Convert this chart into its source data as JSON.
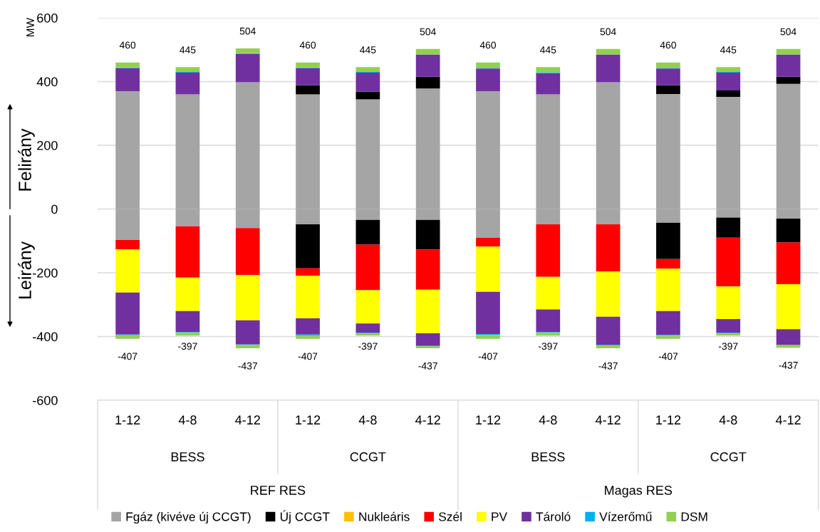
{
  "chart_data": {
    "type": "bar",
    "stacked": true,
    "ylabel": "MW",
    "categories": [
      "1-12",
      "4-8",
      "4-12",
      "1-12",
      "4-8",
      "4-12",
      "1-12",
      "4-8",
      "4-12",
      "1-12",
      "4-8",
      "4-12"
    ],
    "series": [
      {
        "name": "Fgáz (kivéve új CCGT)",
        "color": "#a5a5a5",
        "values": [
          370,
          360,
          398,
          360,
          344,
          378,
          370,
          360,
          398,
          361,
          352,
          393
        ]
      },
      {
        "name": "Új CCGT",
        "color": "#000000",
        "values": [
          0,
          0,
          0,
          28,
          24,
          37,
          0,
          0,
          0,
          27,
          20,
          22
        ]
      },
      {
        "name": "Nukleáris",
        "color": "#ffc000",
        "values": [
          0,
          0,
          0,
          0,
          0,
          0,
          0,
          0,
          0,
          0,
          0,
          0
        ]
      },
      {
        "name": "Szél",
        "color": "#ff0000",
        "values": [
          0,
          0,
          0,
          0,
          0,
          0,
          0,
          0,
          0,
          0,
          0,
          0
        ]
      },
      {
        "name": "PV",
        "color": "#ffff00",
        "values": [
          0,
          0,
          0,
          0,
          0,
          0,
          0,
          0,
          0,
          0,
          0,
          0
        ]
      },
      {
        "name": "Tároló",
        "color": "#7030a0",
        "values": [
          72,
          68,
          89,
          54,
          60,
          70,
          71,
          66,
          87,
          53,
          56,
          70
        ]
      },
      {
        "name": "Vízerőmű",
        "color": "#00b0f0",
        "values": [
          2,
          2,
          2,
          2,
          2,
          null,
          2,
          3,
          null,
          2,
          2,
          null
        ]
      },
      {
        "name": "DSM",
        "color": "#92d050",
        "values": [
          16,
          15,
          15,
          16,
          15,
          17,
          17,
          16,
          17,
          17,
          15,
          17
        ]
      },
      {
        "color": "#a5a5a5",
        "values": [
          -97,
          -54,
          -60,
          -48,
          -34,
          -34,
          -90,
          -48,
          -48,
          -43,
          -27,
          -30
        ]
      },
      {
        "color": "#000000",
        "values": [
          0,
          0,
          0,
          -138,
          -78,
          -93,
          0,
          0,
          0,
          -114,
          -63,
          -75
        ]
      },
      {
        "color": "#ff0000",
        "values": [
          -29,
          -161,
          -147,
          -23,
          -143,
          -126,
          -28,
          -165,
          -148,
          -30,
          -153,
          -131
        ]
      },
      {
        "color": "#ffff00",
        "values": [
          -136,
          -105,
          -142,
          -134,
          -104,
          -137,
          -142,
          -102,
          -142,
          -133,
          -102,
          -141
        ]
      },
      {
        "color": "#7030a0",
        "values": [
          -132,
          -66,
          -76,
          -51,
          -29,
          -38,
          -132,
          -71,
          -88,
          -75,
          -43,
          -50
        ]
      },
      {
        "color": "#00b0f0",
        "values": [
          -2,
          -2,
          -2,
          -4,
          -2,
          -2,
          -3,
          -2,
          -2,
          -3,
          -2,
          null
        ]
      },
      {
        "color": "#92d050",
        "values": [
          -11,
          -9,
          -10,
          -9,
          -7,
          -7,
          -12,
          -9,
          -9,
          -9,
          -7,
          -8
        ]
      }
    ],
    "totals": [
      [
        "460",
        "-407"
      ],
      [
        "445",
        "-397"
      ],
      [
        "504",
        "-437"
      ],
      [
        "460",
        "-407"
      ],
      [
        "445",
        "-397"
      ],
      [
        "504",
        "-437"
      ],
      [
        "460",
        "-407"
      ],
      [
        "445",
        "-397"
      ],
      [
        "504",
        "-437"
      ],
      [
        "460",
        "-407"
      ],
      [
        "445",
        "-397"
      ],
      [
        "504",
        "-437"
      ]
    ],
    "ylim": [
      -600,
      600
    ],
    "yticks": [
      -600,
      -400,
      -200,
      0,
      200,
      400,
      600
    ],
    "grid": "y",
    "legend": "bottom",
    "annotations": [
      "BESS",
      "CCGT",
      "BESS",
      "CCGT",
      "REF RES",
      "Magas RES",
      "Felirány",
      "Leirány"
    ]
  }
}
